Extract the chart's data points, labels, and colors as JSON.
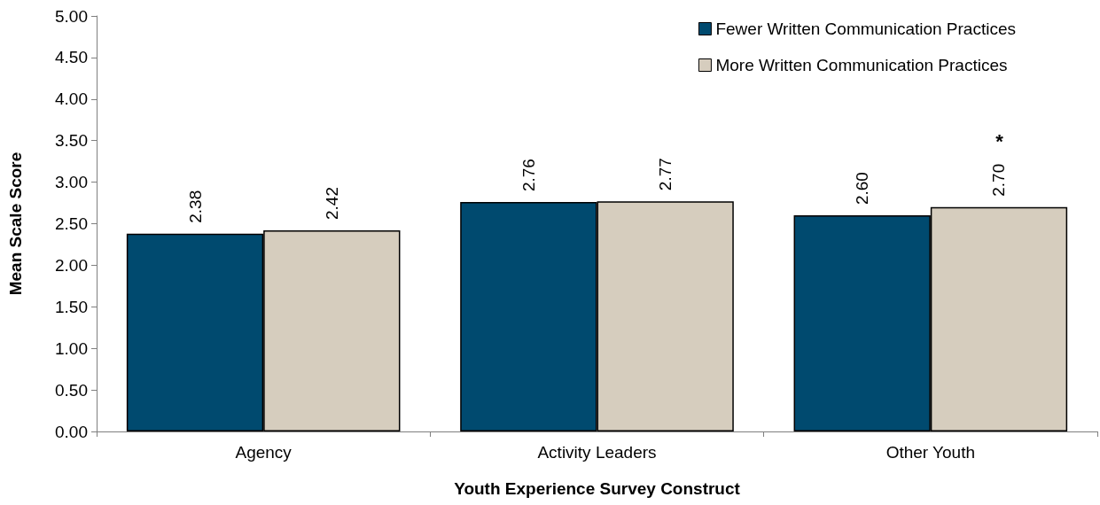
{
  "chart_data": {
    "type": "bar",
    "xlabel": "Youth Experience Survey Construct",
    "ylabel": "Mean Scale Score",
    "categories": [
      "Agency",
      "Activity Leaders",
      "Other Youth"
    ],
    "series": [
      {
        "name": "Fewer Written Communication Practices",
        "color": "#004a6f",
        "values": [
          2.38,
          2.76,
          2.6
        ],
        "value_labels": [
          "2.38",
          "2.76",
          "2.60"
        ]
      },
      {
        "name": "More Written Communication Practices",
        "color": "#d6cdbe",
        "values": [
          2.42,
          2.77,
          2.7
        ],
        "value_labels": [
          "2.42",
          "2.77",
          "2.70"
        ]
      }
    ],
    "annotations": [
      "*"
    ],
    "ylim": [
      0,
      5
    ],
    "yticks": [
      {
        "value": 0,
        "label": "0.00"
      },
      {
        "value": 0.5,
        "label": "0.50"
      },
      {
        "value": 1,
        "label": "1.00"
      },
      {
        "value": 1.5,
        "label": "1.50"
      },
      {
        "value": 2,
        "label": "2.00"
      },
      {
        "value": 2.5,
        "label": "2.50"
      },
      {
        "value": 3,
        "label": "3.00"
      },
      {
        "value": 3.5,
        "label": "3.50"
      },
      {
        "value": 4,
        "label": "4.00"
      },
      {
        "value": 4.5,
        "label": "4.50"
      },
      {
        "value": 5,
        "label": "5.00"
      }
    ],
    "grid": false,
    "legend": "top right"
  }
}
